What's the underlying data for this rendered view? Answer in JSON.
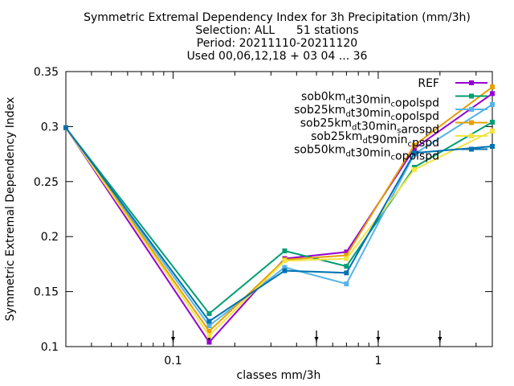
{
  "chart_data": {
    "type": "line",
    "title_lines": [
      "Symmetric Extremal Dependency Index  for 3h Precipitation (mm/3h)",
      "Selection: ALL      51 stations",
      "Period: 20211110-20211120",
      "Used 00,06,12,18 + 03 04 ... 36"
    ],
    "xlabel": "classes mm/3h",
    "ylabel": "Symmetric Extremal Dependency Index",
    "x_scale": "log",
    "xlim": [
      0.03,
      3.6
    ],
    "ylim": [
      0.1,
      0.35
    ],
    "x_ticks": [
      {
        "value": 0.1,
        "label": "0.1"
      },
      {
        "value": 1,
        "label": "1"
      }
    ],
    "y_ticks": [
      {
        "value": 0.1,
        "label": "0.1"
      },
      {
        "value": 0.15,
        "label": "0.15"
      },
      {
        "value": 0.2,
        "label": "0.2"
      },
      {
        "value": 0.25,
        "label": "0.25"
      },
      {
        "value": 0.3,
        "label": "0.3"
      },
      {
        "value": 0.35,
        "label": "0.35"
      }
    ],
    "grid": false,
    "legend_position": "top-right",
    "x": [
      0.03,
      0.15,
      0.35,
      0.7,
      1.5,
      3.6
    ],
    "class_markers": [
      0.1,
      0.15,
      0.5,
      1.0,
      2.0
    ],
    "series": [
      {
        "name": "REF",
        "name_parts": [
          {
            "t": "REF"
          }
        ],
        "color": "#9400D3",
        "values": [
          0.299,
          0.104,
          0.18,
          0.186,
          0.28,
          0.33
        ]
      },
      {
        "name": "sob0km_dt30min_copolspd",
        "name_parts": [
          {
            "t": "sob0km"
          },
          {
            "t": "d",
            "sub": true
          },
          {
            "t": "t30min"
          },
          {
            "t": "c",
            "sub": true
          },
          {
            "t": "opolspd"
          }
        ],
        "color": "#009E73",
        "values": [
          0.299,
          0.13,
          0.187,
          0.173,
          0.263,
          0.304
        ]
      },
      {
        "name": "sob25km_dt30min_copolspd",
        "name_parts": [
          {
            "t": "sob25km"
          },
          {
            "t": "d",
            "sub": true
          },
          {
            "t": "t30min"
          },
          {
            "t": "c",
            "sub": true
          },
          {
            "t": "opolspd"
          }
        ],
        "color": "#56B4E9",
        "values": [
          0.299,
          0.119,
          0.172,
          0.157,
          0.275,
          0.32
        ]
      },
      {
        "name": "sob25km_dt30min_sarospd",
        "name_parts": [
          {
            "t": "sob25km"
          },
          {
            "t": "d",
            "sub": true
          },
          {
            "t": "t30min"
          },
          {
            "t": "s",
            "sub": true
          },
          {
            "t": "arospd"
          }
        ],
        "color": "#E69F00",
        "values": [
          0.299,
          0.114,
          0.179,
          0.183,
          0.283,
          0.336
        ]
      },
      {
        "name": "sob25km_dt90min_cpspd",
        "name_parts": [
          {
            "t": "sob25km"
          },
          {
            "t": "d",
            "sub": true
          },
          {
            "t": "t90min"
          },
          {
            "t": "c",
            "sub": true
          },
          {
            "t": "pspd"
          }
        ],
        "color": "#F0E442",
        "values": [
          0.299,
          0.11,
          0.178,
          0.18,
          0.261,
          0.296
        ]
      },
      {
        "name": "sob50km_dt30min_copolspd",
        "name_parts": [
          {
            "t": "sob50km"
          },
          {
            "t": "d",
            "sub": true
          },
          {
            "t": "t30min"
          },
          {
            "t": "c",
            "sub": true
          },
          {
            "t": "opolspd"
          }
        ],
        "color": "#0072B2",
        "values": [
          0.299,
          0.123,
          0.169,
          0.167,
          0.276,
          0.282
        ]
      }
    ]
  }
}
